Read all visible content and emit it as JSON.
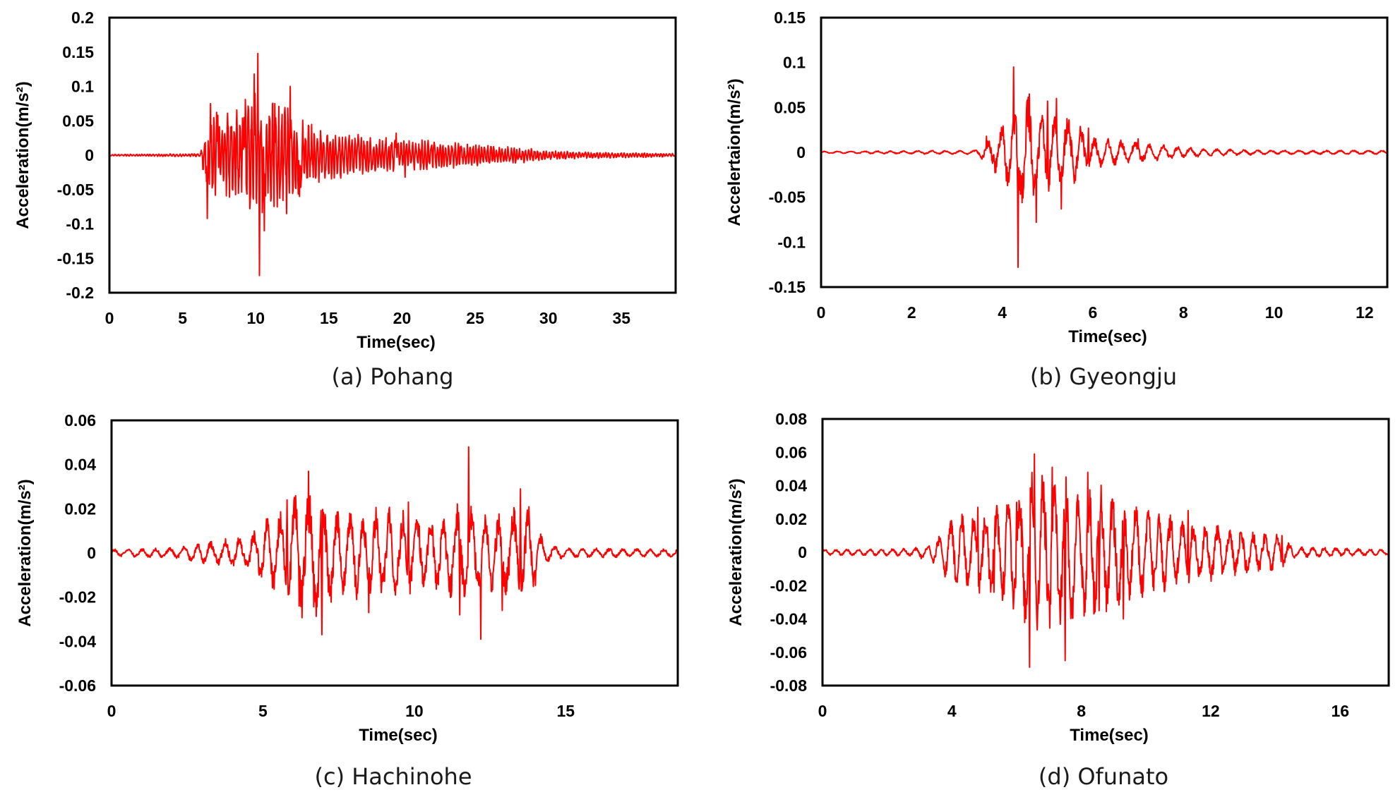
{
  "trace_color": "#ff0000",
  "chart_data": [
    {
      "type": "line",
      "caption": "(a) Pohang",
      "xlabel": "Time(sec)",
      "ylabel": "Acceleration(m/s²)",
      "xlim": [
        0,
        38.7
      ],
      "ylim": [
        -0.2,
        0.2
      ],
      "xticks": [
        0,
        5,
        10,
        15,
        20,
        25,
        30,
        35
      ],
      "xtick_labels": [
        "0",
        "5",
        "10",
        "15",
        "20",
        "25",
        "30",
        "35"
      ],
      "yticks": [
        0.2,
        0.15,
        0.1,
        0.05,
        0,
        -0.05,
        -0.1,
        -0.15,
        -0.2
      ],
      "ytick_labels": [
        "0.2",
        "0.15",
        "0.1",
        "0.05",
        "0",
        "-0.05",
        "-0.1",
        "-0.15",
        "-0.2"
      ],
      "grid": false,
      "series": [
        {
          "duration": 38.7,
          "envelope": [
            [
              0,
              0.001
            ],
            [
              6.2,
              0.002
            ],
            [
              6.5,
              0.03
            ],
            [
              7,
              0.06
            ],
            [
              8,
              0.055
            ],
            [
              9,
              0.06
            ],
            [
              10,
              0.09
            ],
            [
              11,
              0.07
            ],
            [
              12,
              0.07
            ],
            [
              13,
              0.05
            ],
            [
              14,
              0.035
            ],
            [
              16,
              0.028
            ],
            [
              18,
              0.025
            ],
            [
              20,
              0.02
            ],
            [
              23,
              0.018
            ],
            [
              25,
              0.014
            ],
            [
              28,
              0.01
            ],
            [
              30,
              0.006
            ],
            [
              33,
              0.004
            ],
            [
              36,
              0.003
            ],
            [
              38.7,
              0.002
            ]
          ],
          "peaks": [
            [
              6.7,
              -0.092
            ],
            [
              6.9,
              0.075
            ],
            [
              7.4,
              0.058
            ],
            [
              9.2,
              0.055
            ],
            [
              9.9,
              0.118
            ],
            [
              10.15,
              0.148
            ],
            [
              10.25,
              -0.175
            ],
            [
              10.6,
              -0.11
            ],
            [
              11.3,
              0.075
            ],
            [
              12.1,
              -0.085
            ],
            [
              12.35,
              0.1
            ],
            [
              13,
              -0.06
            ],
            [
              19.6,
              0.032
            ],
            [
              20.2,
              -0.032
            ]
          ],
          "noise_freq": 4.5
        }
      ]
    },
    {
      "type": "line",
      "caption": "(b) Gyeongju",
      "xlabel": "Time(sec)",
      "ylabel": "Accelertaion(m/s²)",
      "xlim": [
        0,
        12.5
      ],
      "ylim": [
        -0.15,
        0.15
      ],
      "xticks": [
        0,
        2,
        4,
        6,
        8,
        10,
        12
      ],
      "xtick_labels": [
        "0",
        "2",
        "4",
        "6",
        "8",
        "10",
        "12"
      ],
      "yticks": [
        0.15,
        0.1,
        0.05,
        0,
        -0.05,
        -0.1,
        -0.15
      ],
      "ytick_labels": [
        "0.15",
        "0.1",
        "0.05",
        "0",
        "-0.05",
        "-0.1",
        "-0.15"
      ],
      "grid": false,
      "series": [
        {
          "duration": 12.5,
          "envelope": [
            [
              0,
              0.001
            ],
            [
              3.4,
              0.002
            ],
            [
              3.7,
              0.012
            ],
            [
              4,
              0.03
            ],
            [
              4.5,
              0.055
            ],
            [
              5,
              0.04
            ],
            [
              5.5,
              0.035
            ],
            [
              6,
              0.015
            ],
            [
              7,
              0.01
            ],
            [
              8,
              0.005
            ],
            [
              9,
              0.003
            ],
            [
              10,
              0.002
            ],
            [
              12.5,
              0.002
            ]
          ],
          "peaks": [
            [
              3.65,
              0.018
            ],
            [
              3.8,
              -0.01
            ],
            [
              4.25,
              0.095
            ],
            [
              4.35,
              -0.128
            ],
            [
              4.6,
              0.065
            ],
            [
              4.75,
              -0.078
            ],
            [
              5.0,
              0.057
            ],
            [
              5.3,
              -0.063
            ],
            [
              5.2,
              0.06
            ],
            [
              5.9,
              0.027
            ],
            [
              7.0,
              0.015
            ]
          ],
          "noise_freq": 3.0
        }
      ]
    },
    {
      "type": "line",
      "caption": "(c) Hachinohe",
      "xlabel": "Time(sec)",
      "ylabel": "Acceleration(m/s²)",
      "xlim": [
        0,
        18.7
      ],
      "ylim": [
        -0.06,
        0.06
      ],
      "xticks": [
        0,
        5,
        10,
        15
      ],
      "xtick_labels": [
        "0",
        "5",
        "10",
        "15"
      ],
      "yticks": [
        0.06,
        0.04,
        0.02,
        0,
        -0.02,
        -0.04,
        -0.06
      ],
      "ytick_labels": [
        "0.06",
        "0.04",
        "0.02",
        "0",
        "-0.02",
        "-0.04",
        "-0.06"
      ],
      "grid": false,
      "series": [
        {
          "duration": 18.7,
          "envelope": [
            [
              0,
              0.0015
            ],
            [
              2,
              0.002
            ],
            [
              3,
              0.004
            ],
            [
              4.5,
              0.007
            ],
            [
              5.8,
              0.02
            ],
            [
              6.5,
              0.028
            ],
            [
              7.5,
              0.018
            ],
            [
              9,
              0.018
            ],
            [
              10.5,
              0.015
            ],
            [
              11.5,
              0.02
            ],
            [
              12.5,
              0.015
            ],
            [
              13.8,
              0.02
            ],
            [
              14.3,
              0.004
            ],
            [
              15,
              0.002
            ],
            [
              18.7,
              0.0015
            ]
          ],
          "peaks": [
            [
              5.8,
              0.024
            ],
            [
              6.2,
              -0.024
            ],
            [
              6.5,
              0.037
            ],
            [
              6.95,
              -0.037
            ],
            [
              8.5,
              -0.027
            ],
            [
              9.8,
              0.023
            ],
            [
              11.5,
              -0.028
            ],
            [
              11.8,
              0.048
            ],
            [
              12.2,
              -0.039
            ],
            [
              13.5,
              0.029
            ],
            [
              12.9,
              -0.026
            ]
          ],
          "noise_freq": 2.0
        }
      ]
    },
    {
      "type": "line",
      "caption": "(d) Ofunato",
      "xlabel": "Time(sec)",
      "ylabel": "Acceleration(m/s²)",
      "xlim": [
        0,
        17.5
      ],
      "ylim": [
        -0.08,
        0.08
      ],
      "xticks": [
        0,
        4,
        8,
        12,
        16
      ],
      "xtick_labels": [
        "0",
        "4",
        "8",
        "12",
        "16"
      ],
      "yticks": [
        0.08,
        0.06,
        0.04,
        0.02,
        0,
        -0.02,
        -0.04,
        -0.06,
        -0.08
      ],
      "ytick_labels": [
        "0.08",
        "0.06",
        "0.04",
        "0.02",
        "0",
        "-0.02",
        "-0.04",
        "-0.06",
        "-0.08"
      ],
      "grid": false,
      "series": [
        {
          "duration": 17.5,
          "envelope": [
            [
              0,
              0.0015
            ],
            [
              2.8,
              0.002
            ],
            [
              3.5,
              0.006
            ],
            [
              4,
              0.018
            ],
            [
              5,
              0.022
            ],
            [
              6,
              0.03
            ],
            [
              6.5,
              0.045
            ],
            [
              7.5,
              0.04
            ],
            [
              8.5,
              0.035
            ],
            [
              9.5,
              0.025
            ],
            [
              11,
              0.018
            ],
            [
              12.5,
              0.013
            ],
            [
              14,
              0.01
            ],
            [
              14.6,
              0.003
            ],
            [
              17.5,
              0.0015
            ]
          ],
          "peaks": [
            [
              4.8,
              0.027
            ],
            [
              5.3,
              -0.024
            ],
            [
              6.0,
              0.03
            ],
            [
              6.4,
              -0.069
            ],
            [
              6.55,
              0.059
            ],
            [
              7.1,
              0.051
            ],
            [
              7.5,
              -0.065
            ],
            [
              8.2,
              0.048
            ],
            [
              8.55,
              -0.035
            ],
            [
              9.3,
              -0.04
            ],
            [
              11.3,
              0.025
            ],
            [
              14.2,
              0.01
            ]
          ],
          "noise_freq": 2.5
        }
      ]
    }
  ]
}
